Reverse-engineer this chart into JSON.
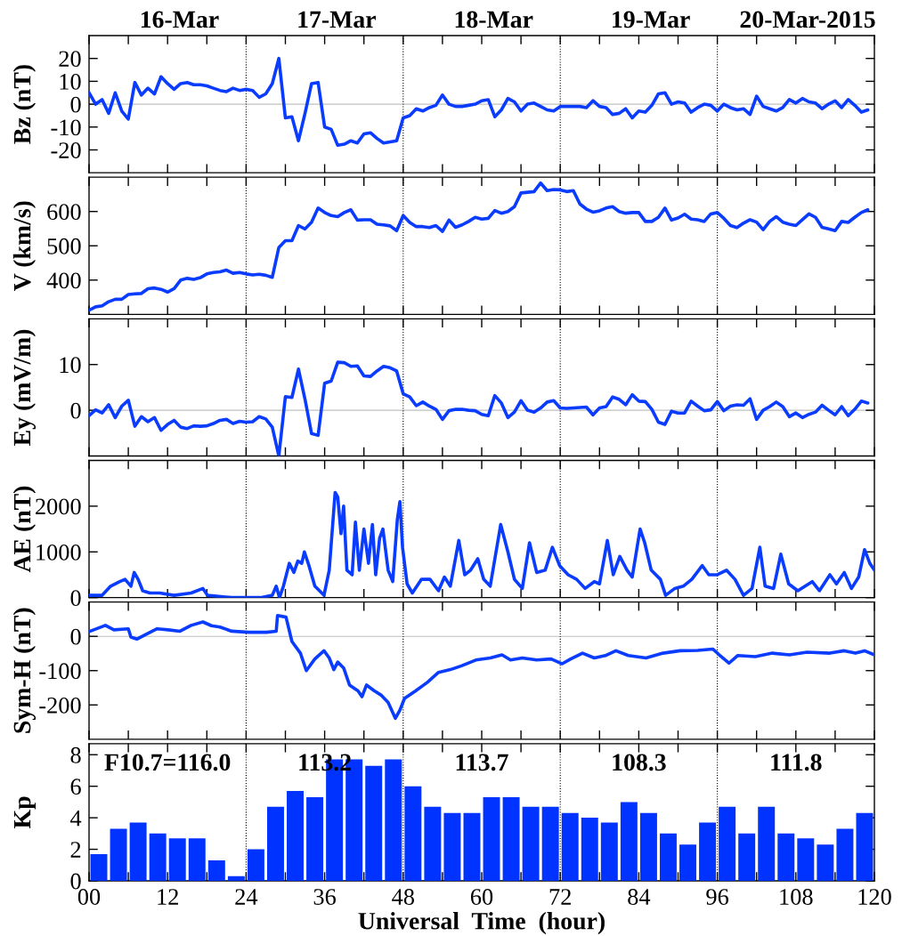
{
  "chart_data": [
    {
      "type": "line",
      "ylabel": "Bz (nT)",
      "xlim": [
        0,
        120
      ],
      "ylim": [
        -30,
        30
      ],
      "xticks": [
        0,
        6,
        12,
        18,
        24,
        30,
        36,
        42,
        48,
        54,
        60,
        66,
        72,
        78,
        84,
        90,
        96,
        102,
        108,
        114,
        120
      ],
      "yticks": [
        -20,
        -10,
        0,
        10,
        20
      ],
      "tick_labels": "y",
      "grid": false,
      "legend": false,
      "annotations": [
        "16-Mar",
        "17-Mar",
        "18-Mar",
        "19-Mar",
        "20-Mar-2015"
      ],
      "ref_lines": [
        {
          "axis": "y",
          "value": 0,
          "color": "#c0c0c0",
          "line_style": "solid"
        },
        {
          "axis": "x",
          "value": 24,
          "color": "#000000",
          "line_style": "dotted"
        },
        {
          "axis": "x",
          "value": 48,
          "color": "#000000",
          "line_style": "dotted"
        },
        {
          "axis": "x",
          "value": 72,
          "color": "#000000",
          "line_style": "dotted"
        },
        {
          "axis": "x",
          "value": 96,
          "color": "#000000",
          "line_style": "dotted"
        }
      ],
      "series": [
        {
          "color": "#0a3cff",
          "x": [
            0,
            1,
            2,
            3,
            4,
            5,
            6,
            7,
            8,
            9,
            10,
            11,
            12,
            13,
            14,
            15,
            16,
            17,
            18,
            19,
            20,
            21,
            22,
            23,
            24,
            25,
            26,
            27,
            28,
            29,
            30,
            31,
            32,
            33,
            34,
            35,
            36,
            37,
            38,
            39,
            40,
            41,
            42,
            43,
            44,
            45,
            46,
            47,
            48,
            49,
            50,
            51,
            52,
            53,
            54,
            55,
            56,
            57,
            58,
            59,
            60,
            61,
            62,
            63,
            64,
            65,
            66,
            67,
            68,
            69,
            70,
            71,
            72,
            73,
            74,
            75,
            76,
            77,
            78,
            79,
            80,
            81,
            82,
            83,
            84,
            85,
            86,
            87,
            88,
            89,
            90,
            91,
            92,
            93,
            94,
            95,
            96,
            97,
            98,
            99,
            100,
            101,
            102,
            103,
            104,
            105,
            106,
            107,
            108,
            109,
            110,
            111,
            112,
            113,
            114,
            115,
            116,
            117,
            118,
            119
          ],
          "values": [
            5,
            0,
            2,
            -4,
            5,
            -3,
            -6.5,
            9.5,
            4,
            7,
            4.5,
            12,
            9,
            6.5,
            9,
            9.5,
            8.5,
            8.5,
            8,
            7,
            6,
            5.5,
            7,
            6,
            6.5,
            6,
            3,
            4.5,
            9,
            20,
            -6,
            -5.5,
            -16,
            -4,
            9,
            9.5,
            -10,
            -11,
            -18,
            -17.5,
            -16,
            -17,
            -13,
            -12.5,
            -15,
            -17,
            -16.5,
            -16,
            -6,
            -5,
            -2,
            -3,
            -1.5,
            -0.5,
            4,
            0,
            -1,
            -1,
            -0.5,
            0,
            1.5,
            2,
            -5.5,
            -2.5,
            2.5,
            1,
            -3,
            0,
            0.5,
            -1,
            -2.5,
            -3,
            -1,
            -1,
            -1,
            -1,
            -1.5,
            1.5,
            -1,
            -1.5,
            -4.5,
            -4,
            -2,
            -6,
            -3,
            -3.5,
            -0.5,
            4.5,
            5,
            0,
            1,
            0.5,
            -3.5,
            -1.5,
            0,
            -0.5,
            -3,
            0,
            -1.5,
            -2.5,
            -2,
            -4.5,
            3.5,
            -1,
            -2,
            -3,
            -1.5,
            2,
            0.5,
            2.5,
            1,
            0.5,
            -2,
            0,
            1.5,
            -1.5,
            2,
            -0.5,
            -3.5,
            -2.5
          ]
        }
      ]
    },
    {
      "type": "line",
      "ylabel": "V (km/s)",
      "xlim": [
        0,
        120
      ],
      "ylim": [
        300,
        700
      ],
      "xticks": [
        0,
        6,
        12,
        18,
        24,
        30,
        36,
        42,
        48,
        54,
        60,
        66,
        72,
        78,
        84,
        90,
        96,
        102,
        108,
        114,
        120
      ],
      "yticks": [
        400,
        500,
        600
      ],
      "tick_labels": "y",
      "grid": false,
      "legend": false,
      "ref_lines": [
        {
          "axis": "x",
          "value": 24,
          "color": "#000000",
          "line_style": "dotted"
        },
        {
          "axis": "x",
          "value": 48,
          "color": "#000000",
          "line_style": "dotted"
        },
        {
          "axis": "x",
          "value": 72,
          "color": "#000000",
          "line_style": "dotted"
        },
        {
          "axis": "x",
          "value": 96,
          "color": "#000000",
          "line_style": "dotted"
        }
      ],
      "series": [
        {
          "color": "#0a3cff",
          "x": [
            0,
            1,
            2,
            3,
            4,
            5,
            6,
            7,
            8,
            9,
            10,
            11,
            12,
            13,
            14,
            15,
            16,
            17,
            18,
            19,
            20,
            21,
            22,
            23,
            24,
            25,
            26,
            27,
            28,
            29,
            30,
            31,
            32,
            33,
            34,
            35,
            36,
            37,
            38,
            39,
            40,
            41,
            42,
            43,
            44,
            45,
            46,
            47,
            48,
            49,
            50,
            51,
            52,
            53,
            54,
            55,
            56,
            57,
            58,
            59,
            60,
            61,
            62,
            63,
            64,
            65,
            66,
            67,
            68,
            69,
            70,
            71,
            72,
            73,
            74,
            75,
            76,
            77,
            78,
            79,
            80,
            81,
            82,
            83,
            84,
            85,
            86,
            87,
            88,
            89,
            90,
            91,
            92,
            93,
            94,
            95,
            96,
            97,
            98,
            99,
            100,
            101,
            102,
            103,
            104,
            105,
            106,
            107,
            108,
            109,
            110,
            111,
            112,
            113,
            114,
            115,
            116,
            117,
            118,
            119
          ],
          "values": [
            312,
            322,
            325,
            337,
            344,
            344,
            358,
            360,
            361,
            375,
            377,
            373,
            365,
            375,
            400,
            405,
            402,
            407,
            418,
            422,
            424,
            429,
            420,
            422,
            418,
            415,
            417,
            414,
            408,
            495,
            515,
            515,
            559,
            549,
            569,
            610,
            597,
            588,
            585,
            597,
            605,
            575,
            576,
            576,
            563,
            561,
            558,
            544,
            588,
            568,
            556,
            556,
            553,
            559,
            542,
            575,
            554,
            561,
            571,
            583,
            578,
            580,
            603,
            595,
            600,
            614,
            654,
            656,
            658,
            683,
            661,
            664,
            663,
            658,
            661,
            622,
            607,
            598,
            602,
            610,
            614,
            600,
            595,
            597,
            597,
            571,
            571,
            583,
            610,
            575,
            581,
            592,
            578,
            576,
            571,
            593,
            597,
            580,
            559,
            553,
            566,
            576,
            569,
            547,
            571,
            585,
            569,
            563,
            559,
            576,
            593,
            583,
            554,
            549,
            544,
            571,
            568,
            583,
            597,
            605
          ]
        }
      ]
    },
    {
      "type": "line",
      "ylabel": "Ey (mV/m)",
      "xlim": [
        0,
        120
      ],
      "ylim": [
        -10,
        20
      ],
      "xticks": [
        0,
        6,
        12,
        18,
        24,
        30,
        36,
        42,
        48,
        54,
        60,
        66,
        72,
        78,
        84,
        90,
        96,
        102,
        108,
        114,
        120
      ],
      "yticks": [
        0,
        10
      ],
      "tick_labels": "y",
      "grid": false,
      "legend": false,
      "ref_lines": [
        {
          "axis": "y",
          "value": 0,
          "color": "#c0c0c0",
          "line_style": "solid"
        },
        {
          "axis": "x",
          "value": 24,
          "color": "#000000",
          "line_style": "dotted"
        },
        {
          "axis": "x",
          "value": 48,
          "color": "#000000",
          "line_style": "dotted"
        },
        {
          "axis": "x",
          "value": 72,
          "color": "#000000",
          "line_style": "dotted"
        },
        {
          "axis": "x",
          "value": 96,
          "color": "#000000",
          "line_style": "dotted"
        }
      ],
      "series": [
        {
          "color": "#0a3cff",
          "x": [
            0,
            1,
            2,
            3,
            4,
            5,
            6,
            7,
            8,
            9,
            10,
            11,
            12,
            13,
            14,
            15,
            16,
            17,
            18,
            19,
            20,
            21,
            22,
            23,
            24,
            25,
            26,
            27,
            28,
            29,
            30,
            31,
            32,
            33,
            34,
            35,
            36,
            37,
            38,
            39,
            40,
            41,
            42,
            43,
            44,
            45,
            46,
            47,
            48,
            49,
            50,
            51,
            52,
            53,
            54,
            55,
            56,
            57,
            58,
            59,
            60,
            61,
            62,
            63,
            64,
            65,
            66,
            67,
            68,
            69,
            70,
            71,
            72,
            73,
            74,
            75,
            76,
            77,
            78,
            79,
            80,
            81,
            82,
            83,
            84,
            85,
            86,
            87,
            88,
            89,
            90,
            91,
            92,
            93,
            94,
            95,
            96,
            97,
            98,
            99,
            100,
            101,
            102,
            103,
            104,
            105,
            106,
            107,
            108,
            109,
            110,
            111,
            112,
            113,
            114,
            115,
            116,
            117,
            118,
            119
          ],
          "values": [
            -1.2,
            0.1,
            -0.6,
            1.2,
            -1.6,
            0.9,
            2.2,
            -3.5,
            -1.4,
            -2.5,
            -1.6,
            -4.4,
            -3.1,
            -2.2,
            -3.7,
            -4,
            -3.4,
            -3.5,
            -3.4,
            -2.9,
            -2.2,
            -2,
            -2.9,
            -2.4,
            -2.6,
            -2.5,
            -1.4,
            -1.9,
            -3.7,
            -10,
            3,
            2.8,
            9,
            2.4,
            -5.1,
            -5.5,
            5.9,
            6.4,
            10.5,
            10.4,
            9.6,
            9.7,
            7.5,
            7.4,
            8.6,
            9.6,
            9.3,
            8.6,
            3.6,
            2.9,
            1,
            1.8,
            0.9,
            0.2,
            -2,
            -0.1,
            0.2,
            0.2,
            0,
            -0.1,
            -0.9,
            -1.2,
            3.2,
            1.6,
            -1.6,
            -0.4,
            2.1,
            0,
            -0.4,
            0.5,
            1.8,
            2.1,
            0.5,
            0.4,
            0.5,
            0.6,
            0.7,
            -1,
            0.5,
            0.8,
            2.9,
            2.4,
            1.2,
            3.4,
            2,
            1.9,
            0.2,
            -2.6,
            -3.1,
            -0.2,
            -0.6,
            -0.6,
            2,
            0.9,
            -0.1,
            0.1,
            1.9,
            -0.1,
            0.9,
            1.2,
            1.1,
            2.5,
            -2,
            0,
            0.8,
            1.8,
            0.8,
            -1.4,
            -0.6,
            -1.6,
            -0.9,
            -0.4,
            1.1,
            0,
            -1,
            0.8,
            -1.2,
            0.2,
            2,
            1.6
          ]
        }
      ]
    },
    {
      "type": "line",
      "ylabel": "AE (nT)",
      "xlim": [
        0,
        120
      ],
      "ylim": [
        0,
        3000
      ],
      "xticks": [
        0,
        6,
        12,
        18,
        24,
        30,
        36,
        42,
        48,
        54,
        60,
        66,
        72,
        78,
        84,
        90,
        96,
        102,
        108,
        114,
        120
      ],
      "yticks": [
        0,
        1000,
        2000
      ],
      "tick_labels": "y",
      "grid": false,
      "legend": false,
      "ref_lines": [
        {
          "axis": "x",
          "value": 24,
          "color": "#000000",
          "line_style": "dotted"
        },
        {
          "axis": "x",
          "value": 48,
          "color": "#000000",
          "line_style": "dotted"
        },
        {
          "axis": "x",
          "value": 72,
          "color": "#000000",
          "line_style": "dotted"
        },
        {
          "axis": "x",
          "value": 96,
          "color": "#000000",
          "line_style": "dotted"
        }
      ],
      "series": [
        {
          "color": "#0a3cff",
          "x": [
            0,
            2,
            3.3,
            4.7,
            5.5,
            6.4,
            6.9,
            7.5,
            8.2,
            9.3,
            10.8,
            13,
            15.6,
            17.4,
            18.1,
            21.8,
            26.2,
            28,
            28.6,
            29.1,
            29.7,
            30.6,
            31.3,
            31.9,
            32.5,
            32.9,
            33.6,
            34.5,
            35.9,
            36.7,
            37.6,
            38,
            38.5,
            38.9,
            39.4,
            40.2,
            40.7,
            41.3,
            42,
            42.7,
            43.3,
            43.8,
            44.4,
            44.9,
            45.7,
            46.4,
            47.1,
            47.5,
            47.9,
            48.6,
            49.4,
            50.8,
            52.1,
            53.4,
            54.3,
            55.2,
            56.5,
            57.4,
            58.3,
            59.4,
            60.3,
            61.3,
            62.9,
            64,
            65,
            66.2,
            67.3,
            68.4,
            69.7,
            70.8,
            71.9,
            73.2,
            74.5,
            75.8,
            77.2,
            78,
            79.2,
            80.1,
            81.1,
            82.2,
            83,
            84.2,
            84.9,
            85.9,
            87.3,
            88.1,
            89.5,
            90.8,
            92.1,
            93.7,
            94.7,
            96,
            97.4,
            98.7,
            100,
            101.3,
            102.5,
            103.3,
            104.6,
            105.7,
            106.9,
            108.3,
            110.5,
            111.6,
            113.2,
            114.2,
            115.4,
            116.5,
            117.6,
            118.5,
            119.3,
            120
          ],
          "values": [
            50,
            50,
            250,
            350,
            400,
            250,
            550,
            400,
            150,
            100,
            100,
            50,
            100,
            200,
            50,
            0,
            0,
            50,
            250,
            0,
            250,
            750,
            550,
            800,
            750,
            1000,
            700,
            250,
            50,
            600,
            2300,
            2200,
            1400,
            2000,
            600,
            500,
            1650,
            600,
            1500,
            750,
            1600,
            500,
            1300,
            1500,
            600,
            350,
            1700,
            2100,
            1100,
            300,
            100,
            400,
            400,
            150,
            450,
            250,
            1250,
            500,
            600,
            850,
            400,
            250,
            1600,
            1000,
            400,
            200,
            1200,
            550,
            600,
            1100,
            700,
            500,
            400,
            200,
            350,
            300,
            1250,
            500,
            900,
            600,
            450,
            1500,
            1200,
            600,
            400,
            50,
            200,
            250,
            400,
            700,
            500,
            500,
            600,
            400,
            50,
            200,
            1100,
            250,
            200,
            950,
            300,
            150,
            350,
            150,
            500,
            300,
            550,
            200,
            450,
            1050,
            750,
            600
          ]
        }
      ]
    },
    {
      "type": "line",
      "ylabel": "Sym-H (nT)",
      "xlim": [
        0,
        120
      ],
      "ylim": [
        -300,
        100
      ],
      "xticks": [
        0,
        6,
        12,
        18,
        24,
        30,
        36,
        42,
        48,
        54,
        60,
        66,
        72,
        78,
        84,
        90,
        96,
        102,
        108,
        114,
        120
      ],
      "yticks": [
        -200,
        -100,
        0
      ],
      "tick_labels": "y",
      "grid": false,
      "legend": false,
      "ref_lines": [
        {
          "axis": "y",
          "value": 0,
          "color": "#c0c0c0",
          "line_style": "solid"
        },
        {
          "axis": "x",
          "value": 24,
          "color": "#000000",
          "line_style": "dotted"
        },
        {
          "axis": "x",
          "value": 48,
          "color": "#000000",
          "line_style": "dotted"
        },
        {
          "axis": "x",
          "value": 72,
          "color": "#000000",
          "line_style": "dotted"
        },
        {
          "axis": "x",
          "value": 96,
          "color": "#000000",
          "line_style": "dotted"
        }
      ],
      "series": [
        {
          "color": "#0a3cff",
          "x": [
            0,
            2.5,
            3.8,
            6,
            6.4,
            7.3,
            8.6,
            10.4,
            12.1,
            13.9,
            15.6,
            17.4,
            18.7,
            20,
            21.8,
            24.4,
            27.1,
            28.6,
            28.8,
            30.1,
            31,
            32.3,
            33.2,
            34.5,
            35.9,
            36.7,
            37.4,
            38,
            38.9,
            39.8,
            41.1,
            41.7,
            42.4,
            43.6,
            44.6,
            45.7,
            46.8,
            47.5,
            48.2,
            49.9,
            51.7,
            53.4,
            55.2,
            56.9,
            59.1,
            61.3,
            63.1,
            64.4,
            66.2,
            68.4,
            70.6,
            72.3,
            73.6,
            75.4,
            77.2,
            78.9,
            80.5,
            82.4,
            85.1,
            87.7,
            90.3,
            93,
            95.3,
            96.3,
            97.8,
            99.1,
            101.8,
            104.4,
            107,
            109.7,
            113.2,
            115.4,
            117.1,
            118.5,
            120
          ],
          "values": [
            14,
            32,
            19,
            22,
            -2,
            -8,
            5,
            22,
            19,
            15,
            32,
            42,
            31,
            27,
            15,
            12,
            12,
            15,
            61,
            56,
            -15,
            -49,
            -100,
            -66,
            -42,
            -63,
            -97,
            -75,
            -92,
            -142,
            -159,
            -176,
            -142,
            -159,
            -171,
            -193,
            -239,
            -215,
            -181,
            -159,
            -134,
            -105,
            -97,
            -86,
            -69,
            -63,
            -54,
            -69,
            -63,
            -69,
            -66,
            -80,
            -66,
            -49,
            -63,
            -56,
            -42,
            -56,
            -63,
            -49,
            -42,
            -41,
            -37,
            -54,
            -78,
            -56,
            -59,
            -49,
            -54,
            -46,
            -49,
            -42,
            -49,
            -42,
            -54
          ]
        }
      ]
    },
    {
      "type": "bar",
      "ylabel": "Kp",
      "xlabel": "Universal  Time  (hour)",
      "xlim": [
        0,
        120
      ],
      "ylim": [
        0,
        8.7
      ],
      "xticks": [
        {
          "value": 0,
          "label": "00"
        },
        {
          "value": 6,
          "label": null
        },
        12,
        {
          "value": 18,
          "label": null
        },
        24,
        {
          "value": 30,
          "label": null
        },
        36,
        {
          "value": 42,
          "label": null
        },
        48,
        {
          "value": 54,
          "label": null
        },
        60,
        {
          "value": 66,
          "label": null
        },
        72,
        {
          "value": 78,
          "label": null
        },
        84,
        {
          "value": 90,
          "label": null
        },
        96,
        {
          "value": 102,
          "label": null
        },
        108,
        {
          "value": 114,
          "label": null
        },
        120
      ],
      "yticks": [
        0,
        2,
        4,
        6,
        8
      ],
      "grid": false,
      "legend": false,
      "annotations": [
        "F10.7=116.0",
        "113.2",
        "113.7",
        "108.3",
        "111.8"
      ],
      "ref_lines": [
        {
          "axis": "x",
          "value": 24,
          "color": "#000000",
          "line_style": "dotted"
        },
        {
          "axis": "x",
          "value": 48,
          "color": "#000000",
          "line_style": "dotted"
        },
        {
          "axis": "x",
          "value": 72,
          "color": "#000000",
          "line_style": "dotted"
        },
        {
          "axis": "x",
          "value": 96,
          "color": "#000000",
          "line_style": "dotted"
        }
      ],
      "series": [
        {
          "color": "#0033ff",
          "x": [
            1.5,
            4.5,
            7.5,
            10.5,
            13.5,
            16.5,
            19.5,
            22.5,
            25.5,
            28.5,
            31.5,
            34.5,
            37.5,
            40.5,
            43.5,
            46.5,
            49.5,
            52.5,
            55.5,
            58.5,
            61.5,
            64.5,
            67.5,
            70.5,
            73.5,
            76.5,
            79.5,
            82.5,
            85.5,
            88.5,
            91.5,
            94.5,
            97.5,
            100.5,
            103.5,
            106.5,
            109.5,
            112.5,
            115.5,
            118.5
          ],
          "values": [
            1.7,
            3.3,
            3.7,
            3,
            2.7,
            2.7,
            1.3,
            0.3,
            2,
            4.7,
            5.7,
            5.3,
            7.7,
            7.7,
            7.3,
            7.7,
            6,
            4.7,
            4.3,
            4.3,
            5.3,
            5.3,
            4.7,
            4.7,
            4.3,
            4,
            3.7,
            5,
            4.3,
            3,
            2.3,
            3.7,
            4.7,
            3,
            4.7,
            3,
            2.7,
            2.3,
            3.3,
            4.3
          ]
        }
      ]
    }
  ]
}
